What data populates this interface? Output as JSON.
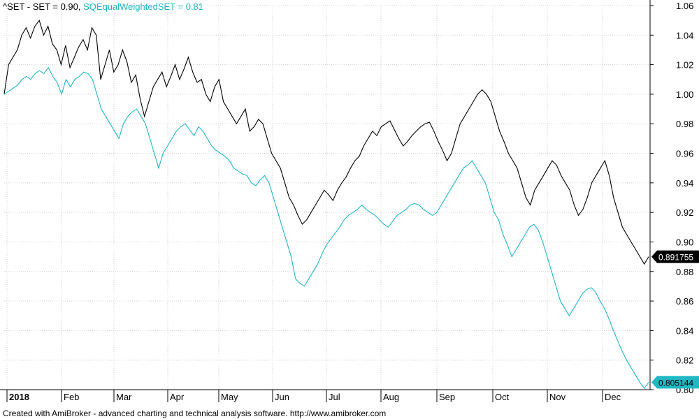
{
  "legend": {
    "series0": "^SET - SET = 0.90,",
    "series1": "SQEqualWeightedSET = 0.81"
  },
  "footer": "Created with AmiBroker - advanced charting and technical analysis software. http://www.amibroker.com",
  "chart_data": {
    "type": "line",
    "ylim": [
      0.8,
      1.06
    ],
    "y_ticks": [
      "1.06",
      "1.04",
      "1.02",
      "1.00",
      "0.98",
      "0.96",
      "0.94",
      "0.92",
      "0.90",
      "0.88",
      "0.86",
      "0.84",
      "0.82",
      "0.80"
    ],
    "x_ticks": [
      "2018",
      "Feb",
      "Mar",
      "Apr",
      "May",
      "Jun",
      "Jul",
      "Aug",
      "Sep",
      "Oct",
      "Nov",
      "Dec"
    ],
    "grid": true,
    "axis_side": "right",
    "series": [
      {
        "name": "^SET",
        "color": "#000000",
        "last_label": "0.891755",
        "values": [
          1.0,
          1.02,
          1.025,
          1.03,
          1.04,
          1.045,
          1.038,
          1.046,
          1.05,
          1.04,
          1.046,
          1.034,
          1.03,
          1.02,
          1.033,
          1.018,
          1.025,
          1.032,
          1.037,
          1.03,
          1.045,
          1.04,
          1.01,
          1.02,
          1.03,
          1.015,
          1.02,
          1.03,
          1.022,
          1.008,
          1.013,
          0.997,
          0.985,
          0.995,
          1.005,
          1.01,
          1.015,
          1.005,
          1.012,
          1.02,
          1.01,
          1.017,
          1.025,
          1.015,
          1.008,
          1.01,
          1.0,
          0.995,
          1.005,
          1.01,
          0.995,
          0.99,
          0.985,
          0.98,
          0.985,
          0.99,
          0.975,
          0.978,
          0.983,
          0.98,
          0.97,
          0.96,
          0.955,
          0.95,
          0.94,
          0.93,
          0.925,
          0.918,
          0.912,
          0.915,
          0.92,
          0.925,
          0.93,
          0.935,
          0.932,
          0.928,
          0.935,
          0.94,
          0.944,
          0.95,
          0.955,
          0.958,
          0.965,
          0.97,
          0.975,
          0.972,
          0.978,
          0.98,
          0.982,
          0.976,
          0.97,
          0.965,
          0.968,
          0.972,
          0.975,
          0.978,
          0.98,
          0.981,
          0.975,
          0.968,
          0.962,
          0.955,
          0.96,
          0.97,
          0.98,
          0.985,
          0.99,
          0.995,
          1.0,
          1.003,
          1.0,
          0.995,
          0.985,
          0.975,
          0.968,
          0.96,
          0.955,
          0.95,
          0.94,
          0.93,
          0.925,
          0.935,
          0.94,
          0.945,
          0.95,
          0.955,
          0.952,
          0.945,
          0.94,
          0.935,
          0.925,
          0.918,
          0.922,
          0.93,
          0.94,
          0.945,
          0.95,
          0.955,
          0.945,
          0.93,
          0.92,
          0.91,
          0.905,
          0.9,
          0.895,
          0.89,
          0.885,
          0.89
        ]
      },
      {
        "name": "SQEqualWeightedSET",
        "color": "#1fb8c3",
        "last_label": "0.805144",
        "values": [
          1.0,
          1.002,
          1.004,
          1.006,
          1.01,
          1.012,
          1.01,
          1.014,
          1.016,
          1.014,
          1.018,
          1.012,
          1.008,
          1.0,
          1.01,
          1.005,
          1.01,
          1.012,
          1.015,
          1.014,
          1.01,
          1.0,
          0.99,
          0.985,
          0.98,
          0.975,
          0.97,
          0.98,
          0.985,
          0.988,
          0.99,
          0.985,
          0.98,
          0.97,
          0.96,
          0.95,
          0.96,
          0.965,
          0.97,
          0.975,
          0.978,
          0.98,
          0.976,
          0.972,
          0.978,
          0.975,
          0.97,
          0.965,
          0.962,
          0.96,
          0.958,
          0.955,
          0.95,
          0.948,
          0.946,
          0.945,
          0.94,
          0.938,
          0.942,
          0.945,
          0.94,
          0.93,
          0.92,
          0.91,
          0.9,
          0.89,
          0.875,
          0.872,
          0.87,
          0.875,
          0.88,
          0.885,
          0.892,
          0.898,
          0.902,
          0.906,
          0.91,
          0.915,
          0.918,
          0.92,
          0.922,
          0.925,
          0.922,
          0.92,
          0.918,
          0.915,
          0.912,
          0.91,
          0.914,
          0.918,
          0.92,
          0.922,
          0.925,
          0.926,
          0.925,
          0.922,
          0.92,
          0.918,
          0.92,
          0.925,
          0.93,
          0.935,
          0.94,
          0.945,
          0.95,
          0.952,
          0.955,
          0.95,
          0.945,
          0.94,
          0.93,
          0.92,
          0.915,
          0.905,
          0.898,
          0.89,
          0.895,
          0.9,
          0.905,
          0.91,
          0.912,
          0.908,
          0.9,
          0.89,
          0.88,
          0.87,
          0.86,
          0.855,
          0.85,
          0.855,
          0.86,
          0.865,
          0.868,
          0.869,
          0.866,
          0.86,
          0.855,
          0.848,
          0.84,
          0.833,
          0.826,
          0.82,
          0.815,
          0.81,
          0.805,
          0.801,
          0.805
        ]
      }
    ]
  }
}
